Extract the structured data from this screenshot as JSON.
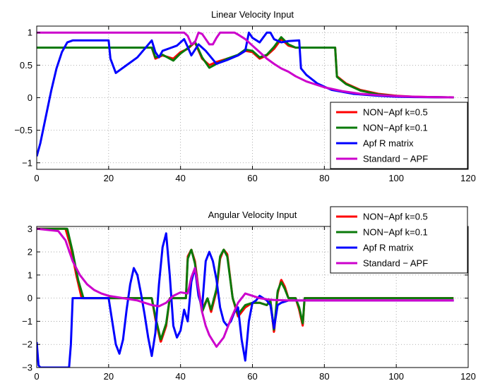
{
  "chart_data": [
    {
      "type": "line",
      "title": "Linear Velocity Input",
      "xlabel": "",
      "ylabel": "",
      "xlim": [
        0,
        120
      ],
      "ylim": [
        -1.1,
        1.1
      ],
      "xticks": [
        0,
        20,
        40,
        60,
        80,
        100,
        120
      ],
      "xtick_labels": [
        "0",
        "20",
        "40",
        "60",
        "80",
        "100",
        "120"
      ],
      "yticks": [
        -1,
        -0.5,
        0,
        0.5,
        1
      ],
      "ytick_labels": [
        "−1",
        "−0.5",
        "0",
        "0.5",
        "1"
      ],
      "grid": true,
      "legend_position": "bottom-right",
      "series": [
        {
          "name": "NON−Apf k=0.5",
          "color": "#ff0000",
          "x": [
            0,
            32,
            33,
            35,
            38,
            40,
            42,
            44,
            46,
            48,
            50,
            53,
            56,
            58,
            60,
            62,
            64,
            66,
            68,
            70,
            72,
            73,
            74,
            83,
            83.5,
            86,
            90,
            95,
            100,
            105,
            110,
            116
          ],
          "y": [
            0.77,
            0.77,
            0.6,
            0.65,
            0.6,
            0.7,
            0.75,
            0.85,
            0.6,
            0.5,
            0.55,
            0.6,
            0.65,
            0.72,
            0.7,
            0.6,
            0.65,
            0.75,
            0.9,
            0.8,
            0.77,
            0.77,
            0.77,
            0.77,
            0.33,
            0.22,
            0.12,
            0.06,
            0.03,
            0.015,
            0.01,
            0.005
          ]
        },
        {
          "name": "NON−Apf k=0.1",
          "color": "#0a7a0a",
          "x": [
            0,
            32,
            33,
            35,
            38,
            40,
            42,
            44,
            46,
            48,
            50,
            53,
            56,
            58,
            60,
            62,
            64,
            66,
            68,
            70,
            72,
            73,
            74,
            83,
            83.5,
            86,
            90,
            95,
            100,
            105,
            110,
            116
          ],
          "y": [
            0.77,
            0.77,
            0.62,
            0.66,
            0.57,
            0.68,
            0.76,
            0.86,
            0.62,
            0.46,
            0.52,
            0.6,
            0.66,
            0.74,
            0.72,
            0.62,
            0.66,
            0.78,
            0.93,
            0.82,
            0.77,
            0.77,
            0.77,
            0.77,
            0.32,
            0.21,
            0.11,
            0.05,
            0.025,
            0.012,
            0.008,
            0.004
          ]
        },
        {
          "name": "Apf R matrix",
          "color": "#0000ff",
          "x": [
            0,
            1,
            2.5,
            4,
            5.5,
            7,
            8.5,
            10,
            20,
            20.5,
            22,
            25,
            28,
            32,
            33,
            34,
            35,
            37,
            39,
            41,
            42,
            43,
            45,
            47,
            50,
            53,
            56,
            58,
            59,
            60,
            62,
            64,
            65,
            66,
            68,
            70,
            73,
            73.5,
            75,
            78,
            82,
            88,
            95,
            100,
            105,
            110,
            116
          ],
          "y": [
            -0.9,
            -0.7,
            -0.3,
            0.1,
            0.45,
            0.7,
            0.85,
            0.88,
            0.88,
            0.6,
            0.38,
            0.5,
            0.62,
            0.88,
            0.7,
            0.62,
            0.72,
            0.76,
            0.8,
            0.9,
            0.78,
            0.65,
            0.82,
            0.72,
            0.52,
            0.58,
            0.65,
            0.72,
            1.0,
            0.92,
            0.85,
            1.0,
            1.0,
            0.9,
            0.85,
            0.87,
            0.88,
            0.45,
            0.35,
            0.22,
            0.12,
            0.06,
            0.03,
            0.015,
            0.01,
            0.008,
            0.005
          ]
        },
        {
          "name": "Standard − APF",
          "color": "#cc00cc",
          "x": [
            0,
            40,
            41,
            42,
            43,
            44,
            45,
            46,
            47,
            48,
            49,
            50,
            51,
            52,
            53,
            54,
            55,
            56,
            58,
            60,
            62,
            64,
            66,
            68,
            70,
            72,
            75,
            80,
            85,
            90,
            95,
            100,
            105,
            110,
            116
          ],
          "y": [
            1,
            1,
            1,
            0.95,
            0.82,
            0.85,
            1,
            0.98,
            0.9,
            0.82,
            0.82,
            0.92,
            1,
            1,
            1,
            1,
            1,
            0.97,
            0.9,
            0.8,
            0.7,
            0.6,
            0.52,
            0.45,
            0.4,
            0.33,
            0.25,
            0.16,
            0.1,
            0.06,
            0.04,
            0.025,
            0.015,
            0.01,
            0.005
          ]
        }
      ]
    },
    {
      "type": "line",
      "title": "Angular Velocity Input",
      "xlabel": "",
      "ylabel": "",
      "xlim": [
        0,
        120
      ],
      "ylim": [
        -3,
        3.1
      ],
      "xticks": [
        0,
        20,
        40,
        60,
        80,
        100,
        120
      ],
      "xtick_labels": [
        "0",
        "20",
        "40",
        "60",
        "80",
        "100",
        "120"
      ],
      "yticks": [
        -3,
        -2,
        -1,
        0,
        1,
        2,
        3
      ],
      "ytick_labels": [
        "−3",
        "−2",
        "−1",
        "0",
        "1",
        "2",
        "3"
      ],
      "grid": true,
      "legend_position": "top-right",
      "band_regions": [
        [
          12.5,
          32
        ],
        [
          37,
          41.5
        ],
        [
          47.5,
          54.5
        ],
        [
          70,
          72
        ],
        [
          74.5,
          116
        ]
      ],
      "series": [
        {
          "name": "NON−Apf k=0.5",
          "color": "#ff0000",
          "band_amplitude": 0.65,
          "x": [
            0,
            8,
            9.5,
            11,
            12.5,
            32,
            33,
            34.5,
            36,
            37,
            41.5,
            42,
            43,
            44,
            45,
            46,
            47.5,
            48.5,
            50,
            51,
            52,
            53,
            54.5,
            56,
            58,
            60,
            62,
            64,
            65,
            66,
            67,
            68,
            69,
            70,
            72,
            73,
            74,
            74.5,
            116
          ],
          "y": [
            3,
            3,
            2.2,
            1.0,
            0,
            0,
            -0.9,
            -1.9,
            -1.2,
            0,
            0,
            1.8,
            2.1,
            1.6,
            0.4,
            -0.5,
            0,
            -0.6,
            0.3,
            1.7,
            2.1,
            1.9,
            0,
            -0.8,
            -0.4,
            -0.2,
            -0.2,
            -0.3,
            -0.1,
            -1.5,
            0.2,
            0.8,
            0.5,
            0,
            0,
            -0.5,
            -1.2,
            0,
            0
          ]
        },
        {
          "name": "NON−Apf k=0.1",
          "color": "#0a7a0a",
          "band_amplitude": 0.18,
          "x": [
            0,
            8.5,
            10,
            11.5,
            13,
            32,
            33,
            34.5,
            36,
            37,
            41.5,
            42,
            43,
            44,
            45,
            46,
            47.5,
            48.5,
            50,
            51,
            52,
            53,
            54.5,
            56,
            58,
            60,
            62,
            64,
            65,
            66,
            67,
            68,
            69,
            70,
            72,
            73,
            74,
            74.5,
            116
          ],
          "y": [
            3,
            3,
            2.0,
            0.8,
            0,
            0,
            -0.8,
            -1.8,
            -1.1,
            0,
            0,
            1.7,
            2.1,
            1.5,
            0.3,
            -0.6,
            0,
            -0.5,
            0.4,
            1.8,
            2.1,
            1.8,
            0,
            -0.7,
            -0.3,
            -0.2,
            -0.2,
            -0.3,
            -0.1,
            -1.4,
            0.3,
            0.7,
            0.4,
            0,
            0,
            -0.4,
            -1.1,
            0,
            0
          ]
        },
        {
          "name": "Apf R matrix",
          "color": "#0000ff",
          "x": [
            0,
            0.5,
            1,
            9,
            9.5,
            10,
            12,
            13,
            14,
            15,
            16,
            18,
            20,
            21,
            22,
            23,
            24,
            25,
            26,
            27,
            28,
            29,
            30,
            31,
            32,
            33,
            34,
            35,
            36,
            37,
            38,
            39,
            40,
            41,
            42,
            43,
            44,
            45,
            46,
            47,
            48,
            49,
            50,
            51,
            52,
            53,
            54,
            55,
            56,
            57,
            58,
            59,
            60,
            61,
            62,
            64,
            65,
            66,
            67,
            68,
            70,
            75,
            80,
            90,
            100,
            110,
            116
          ],
          "y": [
            -1.9,
            -2.9,
            -3,
            -3,
            -2.0,
            0,
            0,
            0,
            0,
            0,
            0,
            0,
            0,
            -1.0,
            -2.0,
            -2.4,
            -1.8,
            -0.5,
            0.6,
            1.3,
            1.0,
            0.2,
            -0.7,
            -1.7,
            -2.5,
            -1.5,
            0.6,
            2.2,
            2.8,
            1.0,
            -1.2,
            -1.7,
            -1.4,
            -0.5,
            -1.0,
            0.7,
            1.3,
            0.1,
            -0.4,
            1.6,
            2.0,
            1.6,
            0.8,
            -0.4,
            -1.0,
            -1.2,
            -1.0,
            -0.6,
            -0.4,
            -1.8,
            -2.7,
            -1.0,
            -0.2,
            -0.1,
            0.1,
            -0.1,
            -0.3,
            -1.3,
            -0.3,
            -0.2,
            -0.1,
            -0.1,
            -0.1,
            -0.1,
            -0.1,
            -0.1,
            -0.1
          ]
        },
        {
          "name": "Standard − APF",
          "color": "#cc00cc",
          "x": [
            0,
            6,
            8,
            10,
            12,
            14,
            16,
            18,
            20,
            24,
            28,
            32,
            34,
            36,
            38,
            40,
            42,
            43,
            44,
            45,
            46,
            47,
            48,
            50,
            52,
            54,
            56,
            58,
            60,
            62,
            64,
            66,
            70,
            80,
            90,
            100,
            110,
            116
          ],
          "y": [
            3,
            2.9,
            2.5,
            1.6,
            1.0,
            0.6,
            0.35,
            0.2,
            0.1,
            0.0,
            -0.1,
            -0.3,
            -0.35,
            -0.2,
            0.1,
            0.25,
            0.2,
            0.9,
            1.3,
            0.4,
            -0.6,
            -1.2,
            -1.6,
            -2.1,
            -1.7,
            -0.9,
            -0.2,
            0.2,
            0.1,
            0.0,
            -0.05,
            -0.08,
            -0.1,
            -0.1,
            -0.1,
            -0.1,
            -0.1,
            -0.1
          ]
        }
      ]
    }
  ]
}
